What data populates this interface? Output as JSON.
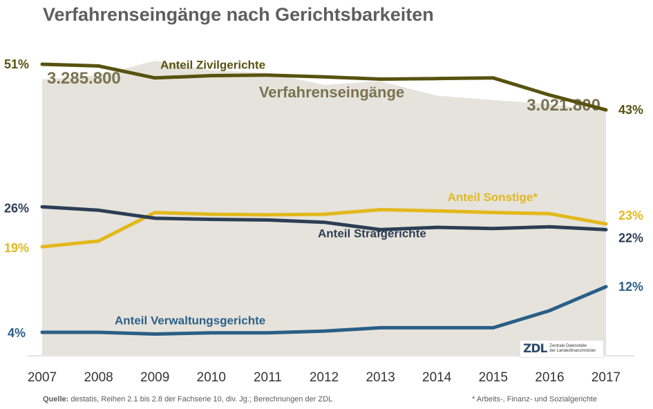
{
  "title": "Verfahrenseingänge nach Gerichtsbarkeiten",
  "footer": {
    "source_label": "Quelle:",
    "source_text": " destatis, Reihen 2.1 bis 2.8 der Fachserie 10, div. Jg.; Berechnungen der ZDL",
    "note": "*  Arbeits-, Finanz- und Sozialgerichte"
  },
  "logo": {
    "mark": "ZDL",
    "line1": "Zentrale Datenstelle",
    "line2": "der Landesfinanzminister"
  },
  "colors": {
    "area": "#e6e3dc",
    "zivil": "#585210",
    "sonstige": "#e2b81c",
    "straf": "#2c3e55",
    "verwaltung": "#2a5f86",
    "area_text": "#7a7350",
    "axis_text": "#333333"
  },
  "chart_data": {
    "type": "line",
    "x": [
      2007,
      2008,
      2009,
      2010,
      2011,
      2012,
      2013,
      2014,
      2015,
      2016,
      2017
    ],
    "x_tick_labels": [
      "2007",
      "2008",
      "2009",
      "2010",
      "2011",
      "2012",
      "2013",
      "2014",
      "2015",
      "2016",
      "2017"
    ],
    "background_area": {
      "label": "Verfahrenseingänge",
      "values": [
        3285800,
        3318000,
        3440000,
        3360000,
        3340000,
        3240000,
        3270000,
        3150000,
        3115000,
        3080000,
        3021800
      ],
      "start_label": "3.285.800",
      "end_label": "3.021.800",
      "ylim": [
        1000000,
        3600000
      ]
    },
    "share_ylim": [
      0,
      0.55
    ],
    "series": [
      {
        "key": "zivil",
        "name": "Anteil Zivilgerichte",
        "values": [
          0.51,
          0.507,
          0.486,
          0.49,
          0.491,
          0.488,
          0.484,
          0.485,
          0.486,
          0.456,
          0.43
        ],
        "start_label": "51%",
        "end_label": "43%"
      },
      {
        "key": "sonstige",
        "name": "Anteil Sonstige*",
        "values": [
          0.19,
          0.2,
          0.25,
          0.247,
          0.246,
          0.247,
          0.255,
          0.253,
          0.25,
          0.248,
          0.23
        ],
        "start_label": "19%",
        "end_label": "23%"
      },
      {
        "key": "straf",
        "name": "Anteil Strafgerichte",
        "values": [
          0.26,
          0.254,
          0.24,
          0.238,
          0.237,
          0.233,
          0.22,
          0.224,
          0.222,
          0.225,
          0.22
        ],
        "start_label": "26%",
        "end_label": "22%"
      },
      {
        "key": "verwaltung",
        "name": "Anteil Verwaltungsgerichte",
        "values": [
          0.04,
          0.04,
          0.037,
          0.039,
          0.039,
          0.042,
          0.048,
          0.048,
          0.048,
          0.078,
          0.12
        ],
        "start_label": "4%",
        "end_label": "12%"
      }
    ]
  }
}
